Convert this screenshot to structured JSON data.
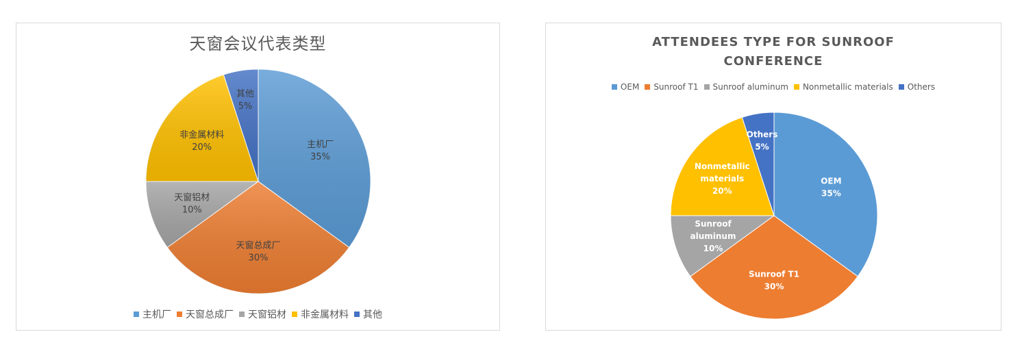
{
  "chart_data": [
    {
      "type": "pie",
      "title": "天窗会议代表类型",
      "categories": [
        "主机厂",
        "天窗总成厂",
        "天窗铝材",
        "非金属材料",
        "其他"
      ],
      "values": [
        35,
        30,
        10,
        20,
        5
      ],
      "value_labels": [
        "35%",
        "30%",
        "10%",
        "20%",
        "5%"
      ],
      "colors": [
        "#5b9bd5",
        "#ed7d31",
        "#a5a5a5",
        "#ffc000",
        "#4472c4"
      ],
      "legend_position": "bottom",
      "labels_inside": true
    },
    {
      "type": "pie",
      "title_lines": [
        "ATTENDEES TYPE FOR SUNROOF",
        "CONFERENCE"
      ],
      "categories": [
        "OEM",
        "Sunroof T1",
        "Sunroof aluminum",
        "Nonmetallic materials",
        "Others"
      ],
      "slice_label_lines": [
        [
          "OEM"
        ],
        [
          "Sunroof T1"
        ],
        [
          "Sunroof",
          "aluminum"
        ],
        [
          "Nonmetallic",
          "materials"
        ],
        [
          "Others"
        ]
      ],
      "values": [
        35,
        30,
        10,
        20,
        5
      ],
      "value_labels": [
        "35%",
        "30%",
        "10%",
        "20%",
        "5%"
      ],
      "colors": [
        "#5b9bd5",
        "#ed7d31",
        "#a5a5a5",
        "#ffc000",
        "#4472c4"
      ],
      "legend_position": "top",
      "labels_inside": true
    }
  ]
}
